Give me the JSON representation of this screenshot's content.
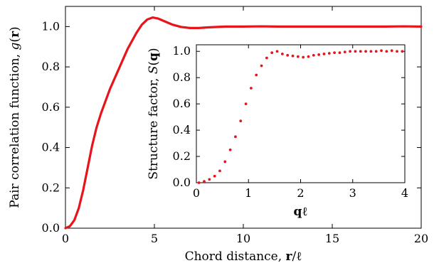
{
  "chart_data": [
    {
      "id": "main",
      "type": "line",
      "xlabel": {
        "text": "Chord distance, ",
        "symbol": "r",
        "suffix": "/ℓ"
      },
      "ylabel": {
        "text": "Pair correlation function, ",
        "symbol": "g",
        "open": "(",
        "vector": "r",
        "close": ")"
      },
      "xlim": [
        0,
        20
      ],
      "ylim": [
        0,
        1.1
      ],
      "xticks": [
        0,
        5,
        10,
        15,
        20
      ],
      "xtick_labels": [
        "0",
        "5",
        "10",
        "15",
        "20"
      ],
      "yticks": [
        0,
        0.2,
        0.4,
        0.6,
        0.8,
        1.0
      ],
      "ytick_labels": [
        "0.0",
        "0.2",
        "0.4",
        "0.6",
        "0.8",
        "1.0"
      ],
      "grid": false,
      "color": "#e8141b",
      "series": [
        {
          "x": [
            0,
            0.25,
            0.5,
            0.75,
            1.0,
            1.25,
            1.5,
            1.75,
            2.0,
            2.5,
            3.0,
            3.5,
            4.0,
            4.3,
            4.6,
            4.9,
            5.2,
            5.6,
            6.0,
            6.5,
            7.0,
            7.5,
            8.0,
            9.0,
            10.0,
            11.0,
            12.0,
            13.0,
            14.0,
            15.0,
            16.0,
            17.0,
            18.0,
            19.0,
            20.0
          ],
          "y": [
            0.0,
            0.01,
            0.04,
            0.1,
            0.19,
            0.3,
            0.41,
            0.5,
            0.57,
            0.69,
            0.79,
            0.89,
            0.97,
            1.01,
            1.035,
            1.045,
            1.04,
            1.025,
            1.01,
            0.998,
            0.993,
            0.993,
            0.996,
            1.0,
            1.0,
            1.001,
            1.0,
            1.0,
            1.0,
            1.0,
            1.0,
            1.0,
            1.0,
            1.001,
            1.0
          ]
        }
      ]
    },
    {
      "id": "inset",
      "type": "scatter",
      "xlabel": {
        "symbol": "q",
        "suffix": "ℓ"
      },
      "ylabel": {
        "text": "Structure factor, ",
        "symbol": "S",
        "open": "(",
        "vector": "q",
        "close": ")"
      },
      "xlim": [
        0,
        4
      ],
      "ylim": [
        0,
        1.05
      ],
      "xticks": [
        0,
        1,
        2,
        3,
        4
      ],
      "xtick_labels": [
        "0",
        "1",
        "2",
        "3",
        "4"
      ],
      "yticks": [
        0,
        0.2,
        0.4,
        0.6,
        0.8,
        1.0
      ],
      "ytick_labels": [
        "0.0",
        "0.2",
        "0.4",
        "0.6",
        "0.8",
        "1.0"
      ],
      "grid": false,
      "color": "#e8141b",
      "series": [
        {
          "x": [
            0.05,
            0.15,
            0.25,
            0.35,
            0.45,
            0.55,
            0.65,
            0.75,
            0.85,
            0.95,
            1.05,
            1.15,
            1.25,
            1.35,
            1.45,
            1.55,
            1.65,
            1.75,
            1.85,
            1.95,
            2.05,
            2.15,
            2.25,
            2.35,
            2.45,
            2.55,
            2.65,
            2.75,
            2.85,
            2.95,
            3.05,
            3.15,
            3.25,
            3.35,
            3.45,
            3.55,
            3.65,
            3.75,
            3.85,
            3.95
          ],
          "y": [
            0.0,
            0.01,
            0.025,
            0.05,
            0.09,
            0.16,
            0.25,
            0.35,
            0.47,
            0.6,
            0.72,
            0.82,
            0.89,
            0.95,
            0.99,
            1.0,
            0.98,
            0.97,
            0.965,
            0.96,
            0.955,
            0.96,
            0.97,
            0.975,
            0.98,
            0.985,
            0.99,
            0.99,
            0.995,
            1.0,
            1.0,
            1.0,
            1.0,
            1.0,
            1.0,
            1.005,
            1.0,
            1.005,
            1.0,
            1.0
          ]
        }
      ]
    }
  ]
}
